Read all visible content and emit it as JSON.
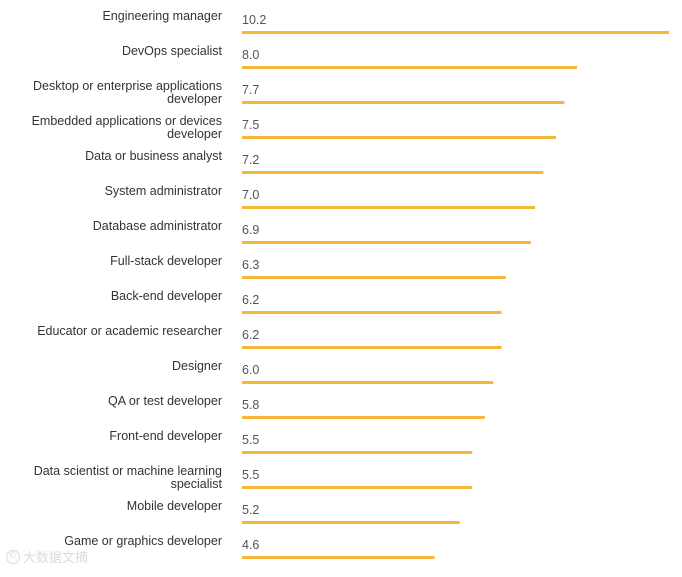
{
  "chart_data": {
    "type": "bar",
    "orientation": "horizontal",
    "title": "",
    "xlabel": "",
    "ylabel": "",
    "xlim": [
      0,
      10.2
    ],
    "grid": false,
    "legend": "none",
    "bar_color": "#F4B73A",
    "label_color": "#333333",
    "value_color": "#555555",
    "categories": [
      [
        "Engineering manager"
      ],
      [
        "DevOps specialist"
      ],
      [
        "Desktop or enterprise applications",
        "developer"
      ],
      [
        "Embedded applications or devices",
        "developer"
      ],
      [
        "Data or business analyst"
      ],
      [
        "System administrator"
      ],
      [
        "Database administrator"
      ],
      [
        "Full-stack developer"
      ],
      [
        "Back-end developer"
      ],
      [
        "Educator or academic researcher"
      ],
      [
        "Designer"
      ],
      [
        "QA or test developer"
      ],
      [
        "Front-end developer"
      ],
      [
        "Data scientist or machine learning",
        "specialist"
      ],
      [
        "Mobile developer"
      ],
      [
        "Game or graphics developer"
      ]
    ],
    "values": [
      10.2,
      8.0,
      7.7,
      7.5,
      7.2,
      7.0,
      6.9,
      6.3,
      6.2,
      6.2,
      6.0,
      5.8,
      5.5,
      5.5,
      5.2,
      4.6
    ],
    "value_labels": [
      "10.2",
      "8.0",
      "7.7",
      "7.5",
      "7.2",
      "7.0",
      "6.9",
      "6.3",
      "6.2",
      "6.2",
      "6.0",
      "5.8",
      "5.5",
      "5.5",
      "5.2",
      "4.6"
    ]
  },
  "watermark": {
    "icon_glyph": "©",
    "text": "大数据文摘"
  }
}
